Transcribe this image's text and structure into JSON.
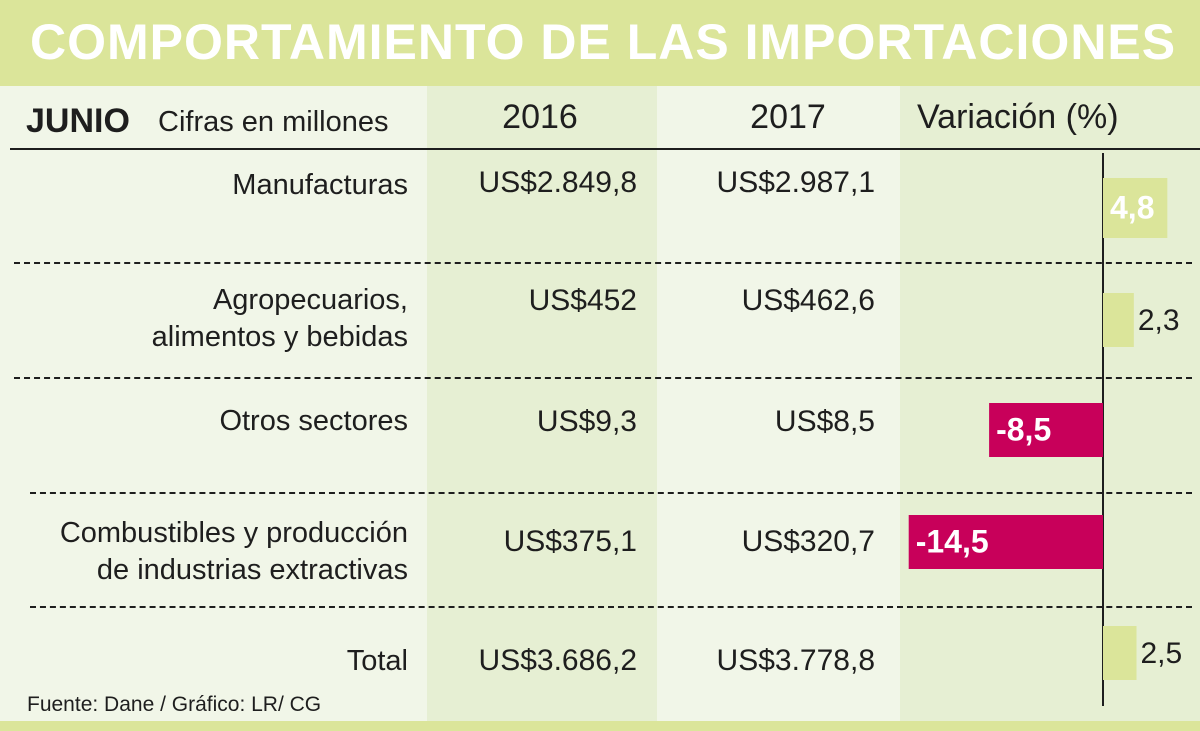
{
  "title": "COMPORTAMIENTO DE LAS IMPORTACIONES",
  "header": {
    "period": "JUNIO",
    "units": "Cifras en millones",
    "col_2016": "2016",
    "col_2017": "2017",
    "col_var": "Variación (%)"
  },
  "rows": [
    {
      "label": "Manufacturas",
      "v2016": "US$2.849,8",
      "v2017": "US$2.987,1",
      "var_label": "4,8"
    },
    {
      "label": "Agropecuarios,\nalimentos y bebidas",
      "v2016": "US$452",
      "v2017": "US$462,6",
      "var_label": "2,3"
    },
    {
      "label": "Otros sectores",
      "v2016": "US$9,3",
      "v2017": "US$8,5",
      "var_label": "-8,5"
    },
    {
      "label": "Combustibles y producción\nde industrias extractivas",
      "v2016": "US$375,1",
      "v2017": "US$320,7",
      "var_label": "-14,5"
    },
    {
      "label": "Total",
      "v2016": "US$3.686,2",
      "v2017": "US$3.778,8",
      "var_label": "2,5"
    }
  ],
  "footer": "Fuente: Dane / Gráfico: LR/ CG",
  "colors": {
    "banner": "#dbe59a",
    "positive_bar": "#dbe59a",
    "negative_bar": "#c8005a",
    "background": "#f1f6e8",
    "column_band": "#e6efd3"
  },
  "chart_data": {
    "type": "bar",
    "orientation": "horizontal",
    "categories": [
      "Manufacturas",
      "Agropecuarios, alimentos y bebidas",
      "Otros sectores",
      "Combustibles y producción de industrias extractivas",
      "Total"
    ],
    "values": [
      4.8,
      2.3,
      -8.5,
      -14.5,
      2.5
    ],
    "value_labels": [
      "4,8",
      "2,3",
      "-8,5",
      "-14,5",
      "2,5"
    ],
    "xlabel": "Variación (%)",
    "ylabel": "",
    "table": {
      "columns": [
        "2016",
        "2017"
      ],
      "values_2016": [
        2849.8,
        452,
        9.3,
        375.1,
        3686.2
      ],
      "values_2017": [
        2987.1,
        462.6,
        8.5,
        320.7,
        3778.8
      ]
    }
  }
}
